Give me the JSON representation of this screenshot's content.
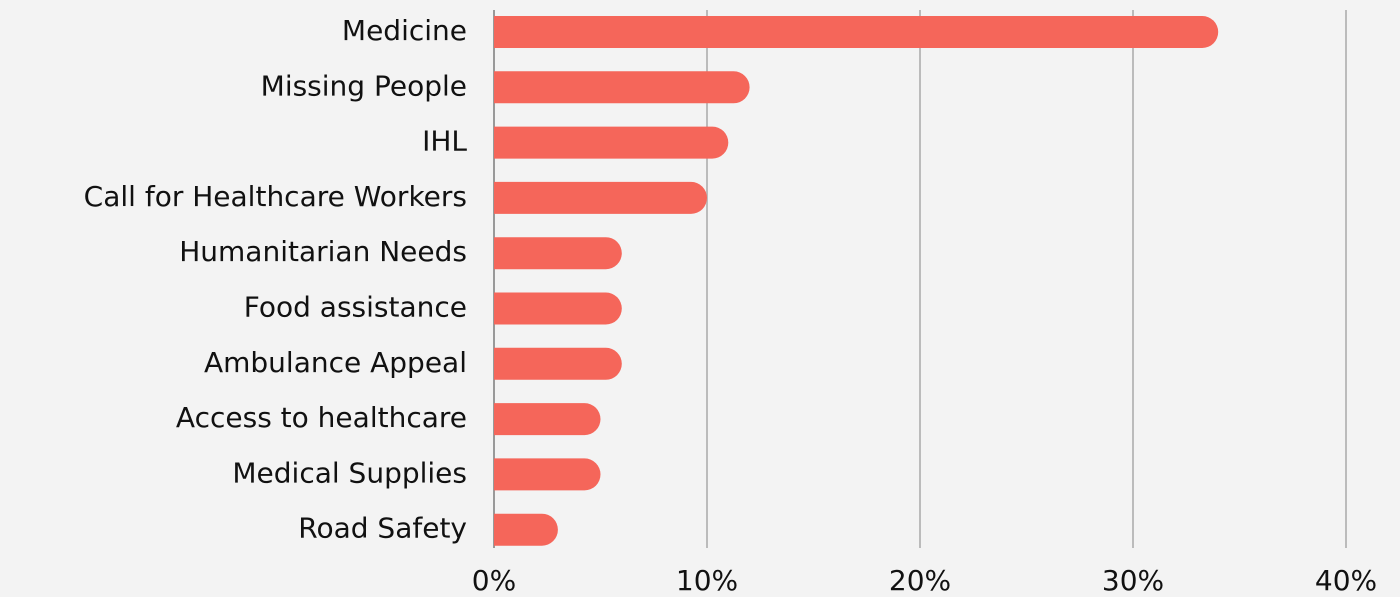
{
  "chart_data": {
    "type": "hbar",
    "categories": [
      "Medicine",
      "Missing People",
      "IHL",
      "Call for Healthcare Workers",
      "Humanitarian Needs",
      "Food assistance",
      "Ambulance Appeal",
      "Access to healthcare",
      "Medical Supplies",
      "Road Safety"
    ],
    "values": [
      34,
      12,
      11,
      10,
      6,
      6,
      6,
      5,
      5,
      3
    ],
    "color": "#f5665a",
    "xlim": [
      0,
      40
    ],
    "xticks": [
      {
        "value": 0,
        "label": "0%"
      },
      {
        "value": 10,
        "label": "10%"
      },
      {
        "value": 20,
        "label": "20%"
      },
      {
        "value": 30,
        "label": "30%"
      },
      {
        "value": 40,
        "label": "40%"
      }
    ],
    "grid": true
  }
}
